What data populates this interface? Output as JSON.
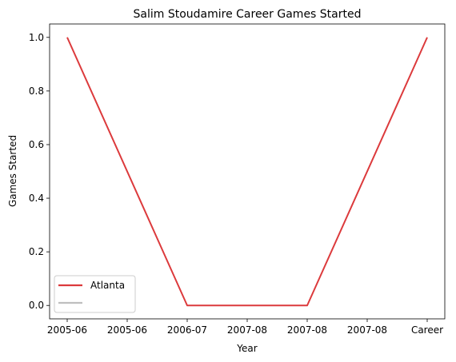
{
  "chart_data": {
    "type": "line",
    "title": "Salim Stoudamire Career Games Started",
    "xlabel": "Year",
    "ylabel": "Games Started",
    "categories": [
      "2005-06",
      "2005-06",
      "2006-07",
      "2007-08",
      "2007-08",
      "2007-08",
      "Career"
    ],
    "x_tick_labels": [
      "2005-06",
      "2005-06",
      "2006-07",
      "2007-08",
      "2007-08",
      "2007-08",
      "Career"
    ],
    "y_tick_labels": [
      "0.0",
      "0.2",
      "0.4",
      "0.6",
      "0.8",
      "1.0"
    ],
    "ylim": [
      -0.05,
      1.05
    ],
    "grid": false,
    "legend_position": "lower-left",
    "series": [
      {
        "name": "Atlanta",
        "color": "#dc3a3c",
        "points": [
          {
            "xi": 0,
            "y": 1
          },
          {
            "xi": 2,
            "y": 0
          },
          {
            "xi": 4,
            "y": 0
          },
          {
            "xi": 6,
            "y": 1
          }
        ]
      },
      {
        "name": "",
        "color": "#bfbfbf",
        "points": []
      }
    ]
  }
}
